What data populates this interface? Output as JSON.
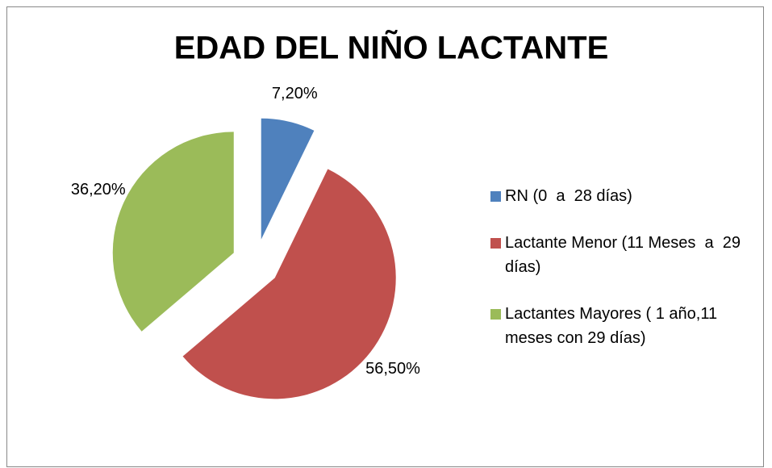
{
  "chart_data": {
    "type": "pie",
    "title": "EDAD DEL NIÑO LACTANTE",
    "categories": [
      "RN (0  a  28 días)",
      "Lactante Menor (11 Meses  a  29 días)",
      "Lactantes Mayores ( 1 año,11 meses con 29 días)"
    ],
    "values": [
      7.2,
      56.5,
      36.2
    ],
    "value_labels": [
      "7,20%",
      "56,50%",
      "36,20%"
    ],
    "colors": [
      "#4f81bd",
      "#c0504d",
      "#9bbb59"
    ],
    "exploded": true,
    "legend": "right"
  }
}
